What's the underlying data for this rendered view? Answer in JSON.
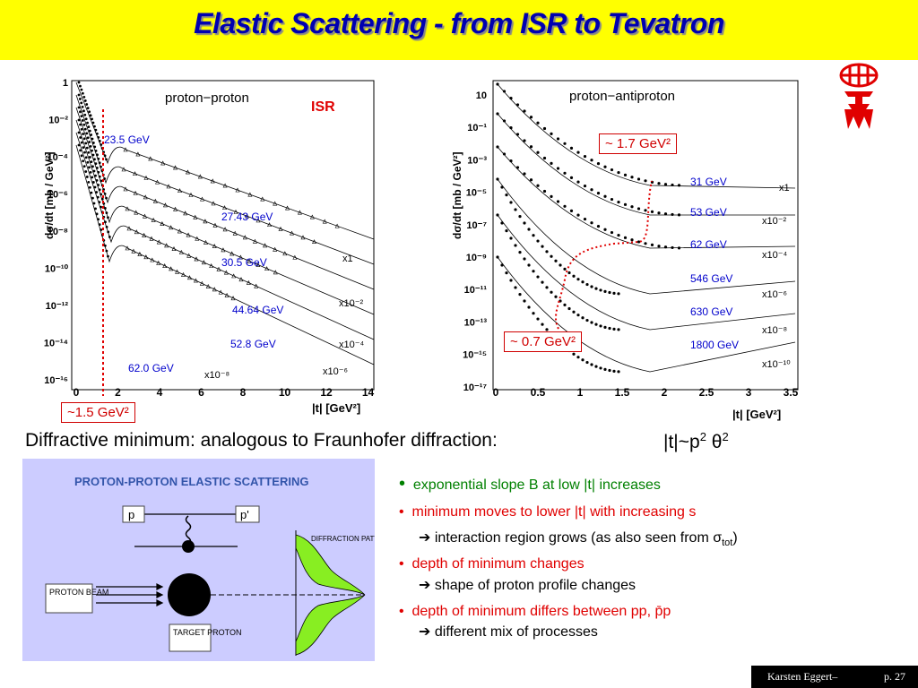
{
  "slide": {
    "title": "Elastic Scattering - from ISR to Tevatron",
    "caption": "Diffractive minimum: analogous to Fraunhofer diffraction:",
    "formula_base": "|t|~p",
    "formula_sup1": "2",
    "formula_theta": "θ",
    "formula_sup2": "2"
  },
  "left_plot": {
    "label": "proton−proton",
    "tag": "ISR",
    "ylabel": "dσ/dt [mb / GeV²]",
    "xlabel": "|t| [GeV²]",
    "x_ticks": [
      "0",
      "2",
      "4",
      "6",
      "8",
      "10",
      "12",
      "14"
    ],
    "y_ticks": [
      "1",
      "10⁻²",
      "10⁻⁴",
      "10⁻⁶",
      "10⁻⁸",
      "10⁻¹⁰",
      "10⁻¹²",
      "10⁻¹⁴",
      "10⁻¹⁶"
    ],
    "energies": [
      "23.5 GeV",
      "27.43 GeV",
      "30.5 GeV",
      "44.64 GeV",
      "52.8 GeV",
      "62.0 GeV"
    ],
    "scales": [
      "x1",
      "x10⁻²",
      "x10⁻⁴",
      "x10⁻⁶",
      "x10⁻⁸"
    ],
    "min_label": "~1.5 GeV²"
  },
  "right_plot": {
    "label": "proton−antiproton",
    "ylabel": "dσ/dt [mb / GeV²]",
    "xlabel": "|t| [GeV²]",
    "x_ticks": [
      "0",
      "0.5",
      "1",
      "1.5",
      "2",
      "2.5",
      "3",
      "3.5"
    ],
    "y_ticks": [
      "10",
      "10⁻¹",
      "10⁻³",
      "10⁻⁵",
      "10⁻⁷",
      "10⁻⁹",
      "10⁻¹¹",
      "10⁻¹³",
      "10⁻¹⁵",
      "10⁻¹⁷"
    ],
    "energies": [
      "31 GeV",
      "53 GeV",
      "62 GeV",
      "546 GeV",
      "630 GeV",
      "1800 GeV"
    ],
    "scales": [
      "x1",
      "x10⁻²",
      "x10⁻⁴",
      "x10⁻⁶",
      "x10⁻⁸",
      "x10⁻¹⁰"
    ],
    "box_high": "~ 1.7 GeV²",
    "box_low": "~ 0.7 GeV²"
  },
  "diagram": {
    "title": "PROTON-PROTON ELASTIC SCATTERING",
    "p_in": "p",
    "p_out": "p'",
    "beam": "PROTON BEAM",
    "target": "TARGET PROTON",
    "pattern": "DIFFRACTION PATTERN"
  },
  "bullets": {
    "b1": "exponential slope B at low |t| increases",
    "b2": "minimum moves to lower |t| with increasing s",
    "b2a": "interaction region grows (as also seen from σ",
    "b2a_sub": "tot",
    "b2a_end": ")",
    "b3": "depth of minimum changes",
    "b3a": "shape of proton profile changes",
    "b4": "depth of minimum differs between pp, p̄p",
    "b4a": "different mix of processes"
  },
  "footer": {
    "author": "Karsten Eggert–",
    "page": "p. 27"
  },
  "colors": {
    "title_bg": "#ffff00",
    "title_fg": "#0000b0",
    "accent_red": "#d00000",
    "energy_blue": "#0000cc",
    "green": "#008000"
  }
}
